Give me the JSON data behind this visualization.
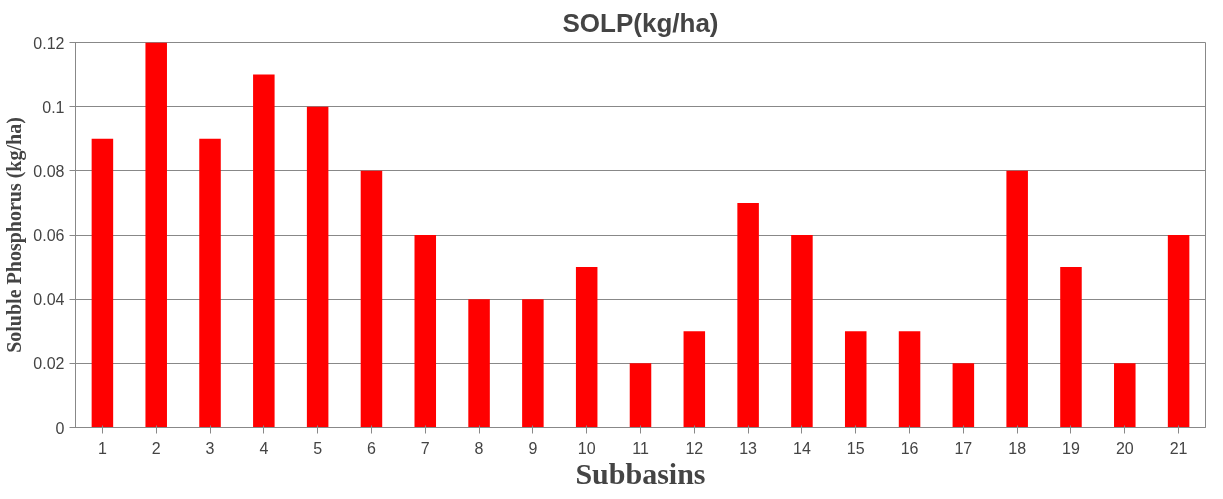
{
  "chart_data": {
    "type": "bar",
    "title": "SOLP(kg/ha)",
    "xlabel": "Subbasins",
    "ylabel": "Soluble Phosphorus (kg/ha)",
    "categories": [
      "1",
      "2",
      "3",
      "4",
      "5",
      "6",
      "7",
      "8",
      "9",
      "10",
      "11",
      "12",
      "13",
      "14",
      "15",
      "16",
      "17",
      "18",
      "19",
      "20",
      "21"
    ],
    "values": [
      0.09,
      0.12,
      0.09,
      0.11,
      0.1,
      0.08,
      0.06,
      0.04,
      0.04,
      0.05,
      0.02,
      0.03,
      0.07,
      0.06,
      0.03,
      0.03,
      0.02,
      0.08,
      0.05,
      0.02,
      0.06
    ],
    "color": "#ff0000",
    "ylim": [
      0,
      0.12
    ],
    "yticks": [
      0,
      0.02,
      0.04,
      0.06,
      0.08,
      0.1,
      0.12
    ],
    "grid": "y"
  }
}
